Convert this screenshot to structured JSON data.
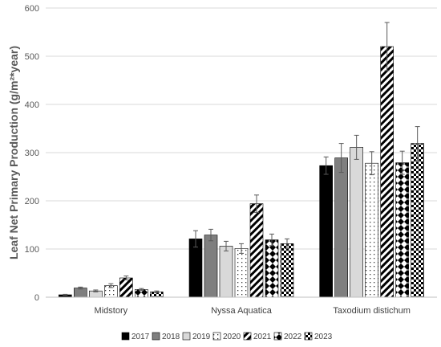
{
  "chart_data": {
    "type": "bar",
    "ylabel": "Leaf Net Primary Production (g/m²*year)",
    "xlabel": "",
    "ylim": [
      0,
      600
    ],
    "yticks": [
      0,
      100,
      200,
      300,
      400,
      500,
      600
    ],
    "grid": true,
    "legend_position": "bottom",
    "categories": [
      "Midstory",
      "Nyssa Aquatica",
      "Taxodium distichum"
    ],
    "series": [
      {
        "name": "2017",
        "values": [
          5,
          121,
          273
        ],
        "errors": [
          1,
          17,
          18
        ],
        "pattern": "solid-black"
      },
      {
        "name": "2018",
        "values": [
          19,
          129,
          289
        ],
        "errors": [
          2,
          12,
          30
        ],
        "pattern": "solid-darkgray"
      },
      {
        "name": "2019",
        "values": [
          13,
          106,
          311
        ],
        "errors": [
          2,
          10,
          25
        ],
        "pattern": "solid-lightgray"
      },
      {
        "name": "2020",
        "values": [
          24,
          101,
          278
        ],
        "errors": [
          4,
          10,
          24
        ],
        "pattern": "dots"
      },
      {
        "name": "2021",
        "values": [
          40,
          194,
          520
        ],
        "errors": [
          4,
          18,
          50
        ],
        "pattern": "diagonal-stripes"
      },
      {
        "name": "2022",
        "values": [
          16,
          119,
          279
        ],
        "errors": [
          2,
          12,
          24
        ],
        "pattern": "diamonds"
      },
      {
        "name": "2023",
        "values": [
          11,
          111,
          319
        ],
        "errors": [
          2,
          10,
          35
        ],
        "pattern": "checker"
      }
    ]
  }
}
